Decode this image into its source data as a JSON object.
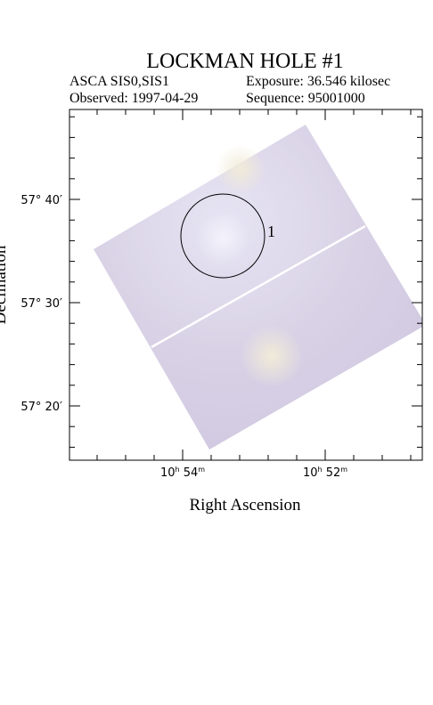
{
  "title": "LOCKMAN HOLE #1",
  "info": {
    "instrument": "ASCA SIS0,SIS1",
    "exposure": "Exposure: 36.546 kilosec",
    "observed": "Observed: 1997-04-29",
    "sequence": "Sequence: 95001000"
  },
  "axes": {
    "x_label": "Right Ascension",
    "y_label": "Declination",
    "x_ticks": [
      {
        "hours": "10",
        "hour_unit": "h",
        "minutes": "54",
        "minute_unit": "m"
      },
      {
        "hours": "10",
        "hour_unit": "h",
        "minutes": "52",
        "minute_unit": "m"
      }
    ],
    "y_ticks": [
      "57° 40′",
      "57° 30′",
      "57° 20′"
    ]
  },
  "sources": [
    {
      "label": "1"
    }
  ]
}
